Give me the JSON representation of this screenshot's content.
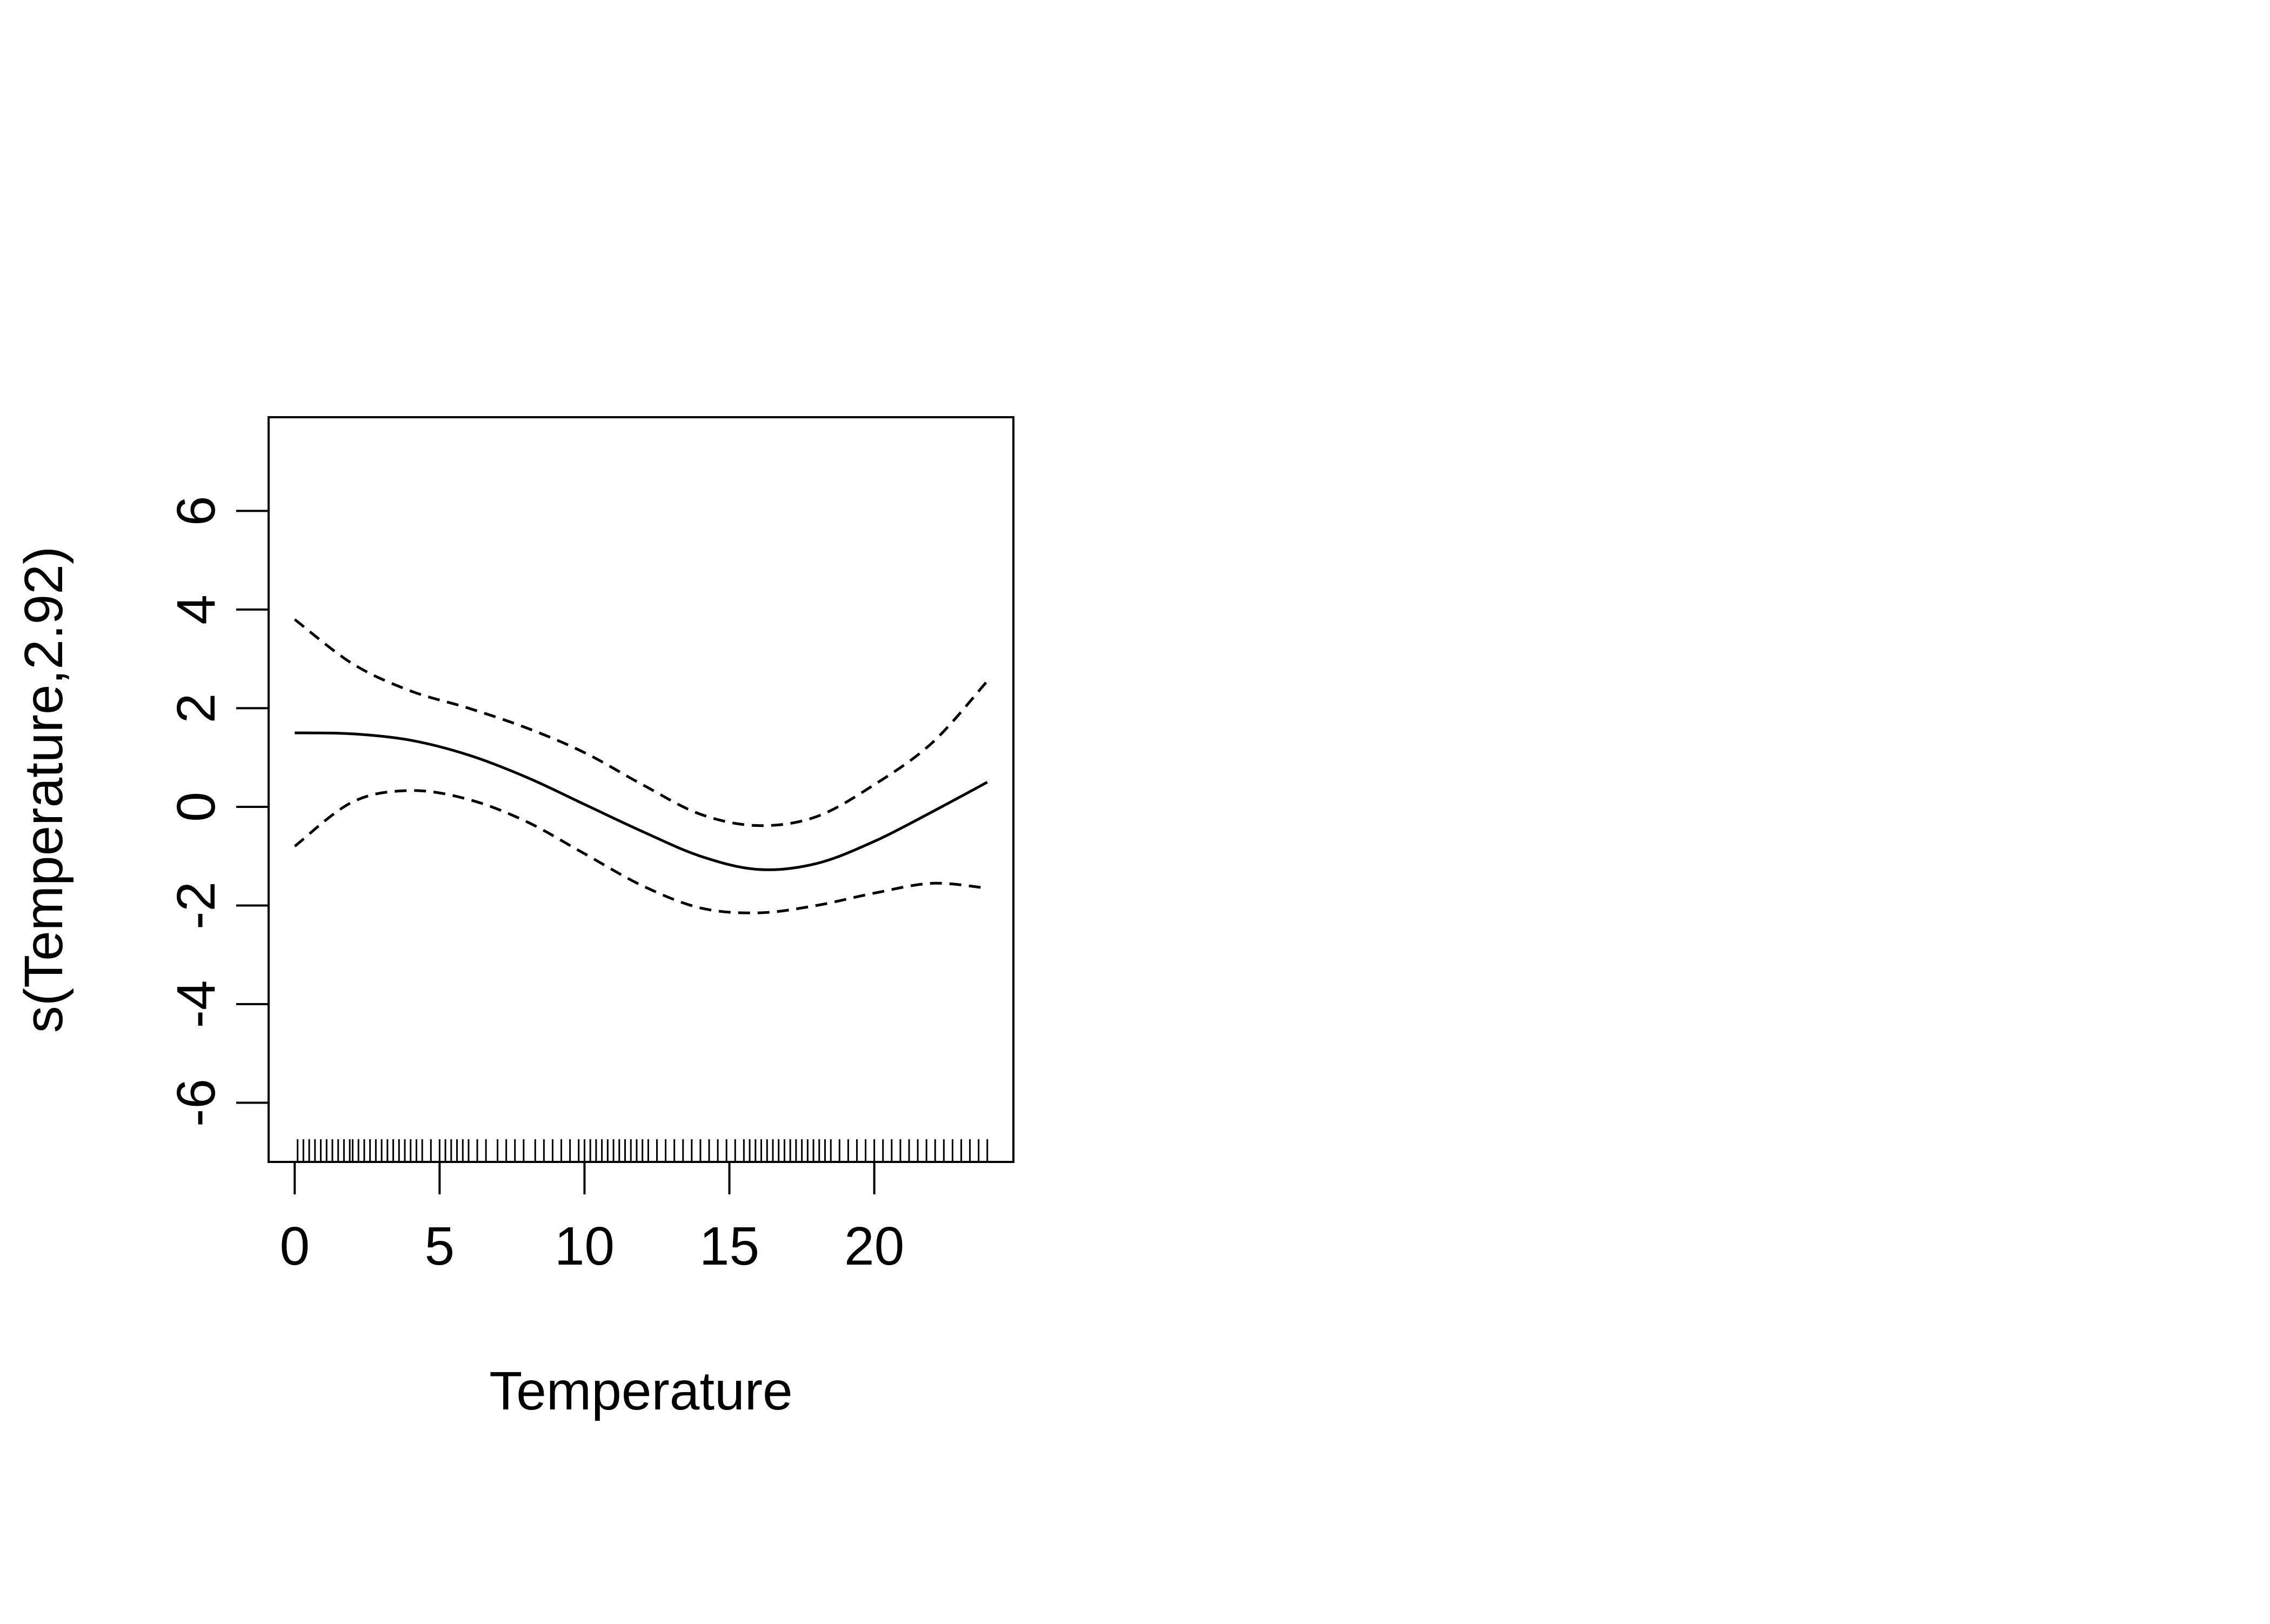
{
  "chart_data": {
    "type": "line",
    "xlabel": "Temperature",
    "ylabel": "s(Temperature,2.92)",
    "xlim": [
      -0.9,
      24.8
    ],
    "ylim": [
      -7.2,
      7.9
    ],
    "xticks": [
      0,
      5,
      10,
      15,
      20
    ],
    "yticks": [
      -6,
      -4,
      -2,
      0,
      2,
      4,
      6
    ],
    "grid": false,
    "legend": "none",
    "series": [
      {
        "style": "solid",
        "x": [
          0,
          2,
          4,
          6,
          8,
          10,
          12,
          14,
          16,
          18,
          20,
          22,
          23.9
        ],
        "y": [
          1.5,
          1.48,
          1.35,
          1.05,
          0.6,
          0.05,
          -0.5,
          -1.0,
          -1.27,
          -1.15,
          -0.7,
          -0.1,
          0.5
        ]
      },
      {
        "style": "dashed",
        "x": [
          0,
          2,
          4,
          6,
          8,
          10,
          12,
          14,
          16,
          18,
          20,
          22,
          23.9
        ],
        "y": [
          3.8,
          2.9,
          2.35,
          2.0,
          1.6,
          1.1,
          0.45,
          -0.15,
          -0.38,
          -0.2,
          0.45,
          1.3,
          2.55
        ]
      },
      {
        "style": "dashed",
        "x": [
          0,
          2,
          4,
          6,
          8,
          10,
          12,
          14,
          16,
          18,
          20,
          22,
          23.9
        ],
        "y": [
          -0.8,
          0.1,
          0.33,
          0.15,
          -0.3,
          -0.95,
          -1.6,
          -2.05,
          -2.15,
          -2.0,
          -1.75,
          -1.55,
          -1.65
        ]
      }
    ],
    "rug": [
      0.1,
      0.3,
      0.5,
      0.7,
      0.9,
      1.1,
      1.3,
      1.5,
      1.7,
      1.9,
      2.0,
      2.2,
      2.4,
      2.6,
      2.8,
      3.0,
      3.2,
      3.4,
      3.6,
      3.8,
      4.0,
      4.2,
      4.4,
      4.7,
      5.0,
      5.2,
      5.4,
      5.6,
      5.8,
      6.0,
      6.3,
      6.6,
      7.0,
      7.3,
      7.6,
      7.9,
      8.3,
      8.6,
      8.9,
      9.2,
      9.5,
      9.8,
      10.0,
      10.2,
      10.4,
      10.6,
      10.8,
      11.0,
      11.2,
      11.4,
      11.6,
      11.8,
      12.0,
      12.2,
      12.5,
      12.8,
      13.1,
      13.4,
      13.7,
      14.0,
      14.3,
      14.6,
      14.9,
      15.2,
      15.5,
      15.7,
      15.9,
      16.1,
      16.3,
      16.5,
      16.7,
      16.9,
      17.1,
      17.3,
      17.5,
      17.7,
      17.9,
      18.1,
      18.3,
      18.5,
      18.8,
      19.1,
      19.4,
      19.7,
      20.0,
      20.3,
      20.6,
      20.9,
      21.2,
      21.5,
      21.8,
      22.1,
      22.4,
      22.7,
      23.0,
      23.3,
      23.6,
      23.9
    ]
  }
}
